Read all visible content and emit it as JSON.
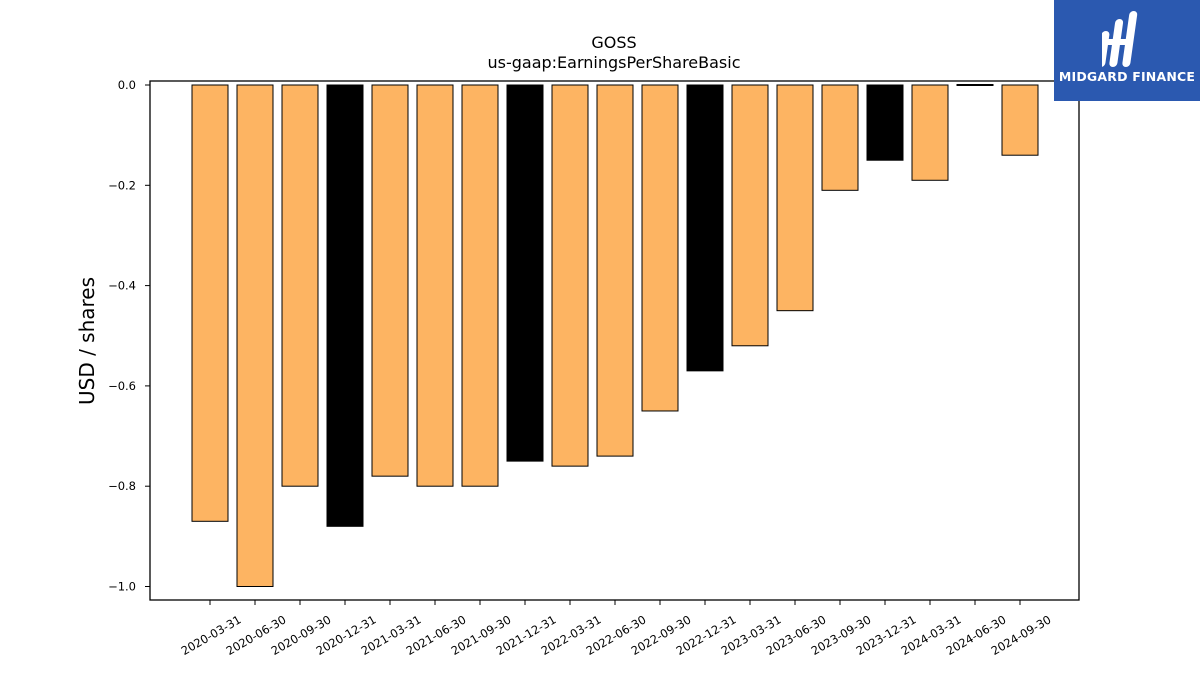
{
  "chart_data": {
    "type": "bar",
    "title": "GOSS",
    "subtitle": "us-gaap:EarningsPerShareBasic",
    "xlabel": "",
    "ylabel": "USD / shares",
    "ylim": [
      -1.03,
      0.008
    ],
    "yticks": [
      0.0,
      -0.2,
      -0.4,
      -0.6,
      -0.8,
      -1.0
    ],
    "ytick_labels": [
      "0.0",
      "−0.2",
      "−0.4",
      "−0.6",
      "−0.8",
      "−1.0"
    ],
    "grid": false,
    "categories": [
      "2020-03-31",
      "2020-06-30",
      "2020-09-30",
      "2020-12-31",
      "2021-03-31",
      "2021-06-30",
      "2021-09-30",
      "2021-12-31",
      "2022-03-31",
      "2022-06-30",
      "2022-09-30",
      "2022-12-31",
      "2023-03-31",
      "2023-06-30",
      "2023-09-30",
      "2023-12-31",
      "2024-03-31",
      "2024-06-30",
      "2024-09-30"
    ],
    "values": [
      -0.87,
      -1.0,
      -0.8,
      -0.88,
      -0.78,
      -0.8,
      -0.8,
      -0.75,
      -0.76,
      -0.74,
      -0.65,
      -0.57,
      -0.52,
      -0.45,
      -0.21,
      -0.15,
      -0.19,
      0.0,
      -0.14
    ],
    "colors": [
      "#fdb462",
      "#fdb462",
      "#fdb462",
      "#000000",
      "#fdb462",
      "#fdb462",
      "#fdb462",
      "#000000",
      "#fdb462",
      "#fdb462",
      "#fdb462",
      "#000000",
      "#fdb462",
      "#fdb462",
      "#fdb462",
      "#000000",
      "#fdb462",
      "#fdb462",
      "#fdb462"
    ]
  },
  "logo": {
    "text": "MIDGARD FINANCE",
    "background": "#2b59b0"
  }
}
